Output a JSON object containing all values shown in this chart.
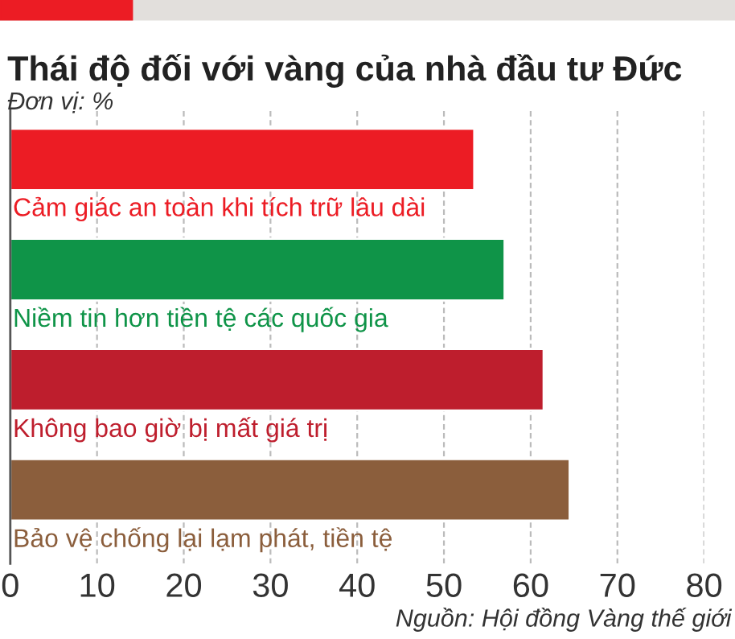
{
  "chart_data": {
    "type": "bar",
    "orientation": "horizontal",
    "title": "Thái độ đối với vàng của nhà đầu tư Đức",
    "subtitle": "Đơn vị: %",
    "categories": [
      "Cảm giác an toàn khi tích trữ lâu dài",
      "Niềm tin hơn tiền tệ các quốc gia",
      "Không bao giờ bị mất giá trị",
      "Bảo vệ chống lại lạm phát, tiền tệ"
    ],
    "values": [
      53.5,
      57,
      61.5,
      64.5
    ],
    "colors": [
      "#ec1c24",
      "#0f9448",
      "#be1e2d",
      "#8b5e3c"
    ],
    "xlim": [
      0,
      80
    ],
    "xticks": [
      0,
      10,
      20,
      30,
      40,
      50,
      60,
      70,
      80
    ],
    "grid": "x",
    "annotations": [
      "Nguồn: Hội đồng Vàng thế giới"
    ]
  }
}
